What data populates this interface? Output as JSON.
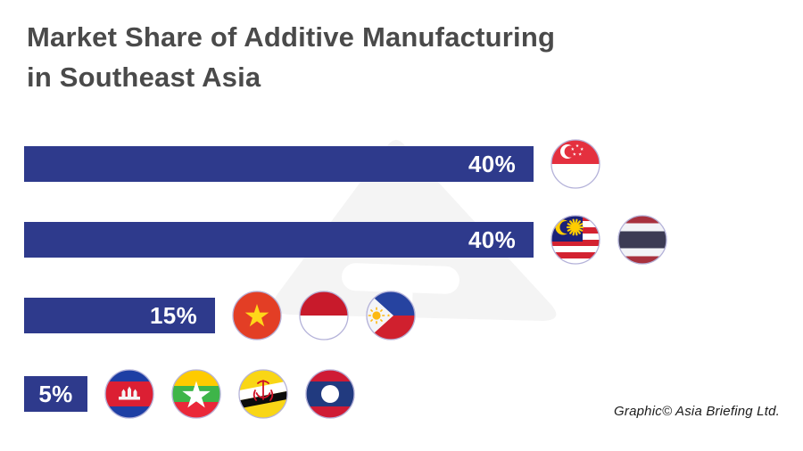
{
  "title": {
    "line1": "Market Share of Additive Manufacturing",
    "line2": "in Southeast Asia"
  },
  "credit": "Graphic© Asia Briefing Ltd.",
  "colors": {
    "background": "#ffffff",
    "bar": "#2e3a8c",
    "title_text": "#4a4a4a",
    "value_label_text": "#ffffff",
    "watermark": "#f4f4f4",
    "flag_ring": "#b4b2d9"
  },
  "chart_data": {
    "type": "bar",
    "orientation": "horizontal",
    "title": "Market Share of Additive Manufacturing in Southeast Asia",
    "unit": "%",
    "xlim": [
      0,
      40
    ],
    "grid": false,
    "legend": "flags-right-of-bars",
    "rows": [
      {
        "label": "40%",
        "value": 40,
        "countries": [
          "Singapore"
        ]
      },
      {
        "label": "40%",
        "value": 40,
        "countries": [
          "Malaysia",
          "Thailand"
        ]
      },
      {
        "label": "15%",
        "value": 15,
        "countries": [
          "Vietnam",
          "Indonesia",
          "Philippines"
        ]
      },
      {
        "label": "5%",
        "value": 5,
        "countries": [
          "Cambodia",
          "Myanmar",
          "Brunei",
          "Laos"
        ]
      }
    ]
  }
}
